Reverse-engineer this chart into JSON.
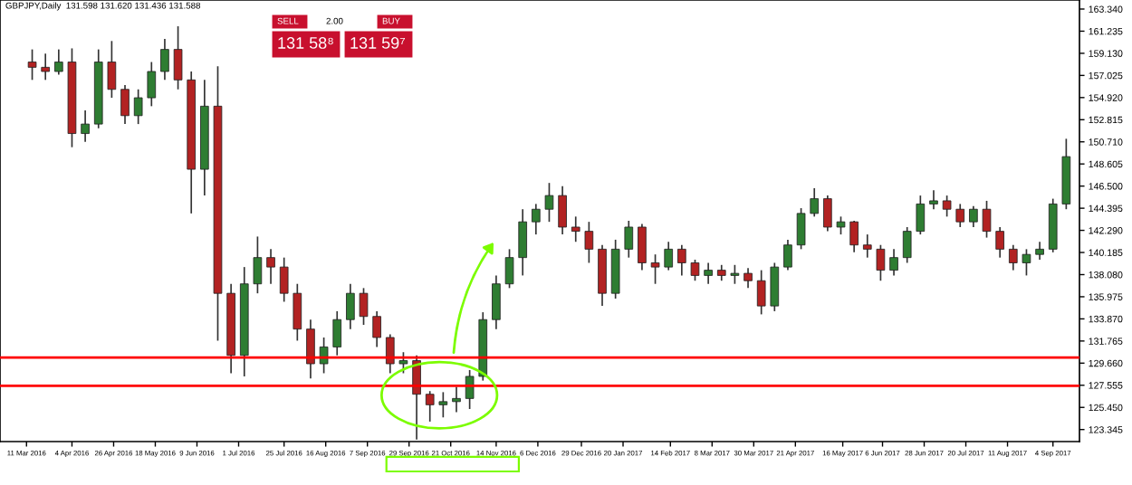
{
  "chart_data": {
    "type": "candlestick",
    "x": [
      "2016-03-14",
      "2016-03-21",
      "2016-03-28",
      "2016-04-04",
      "2016-04-11",
      "2016-04-18",
      "2016-04-25",
      "2016-05-02",
      "2016-05-09",
      "2016-05-16",
      "2016-05-23",
      "2016-05-30",
      "2016-06-06",
      "2016-06-13",
      "2016-06-20",
      "2016-06-27",
      "2016-07-04",
      "2016-07-11",
      "2016-07-18",
      "2016-07-25",
      "2016-08-01",
      "2016-08-08",
      "2016-08-15",
      "2016-08-22",
      "2016-08-29",
      "2016-09-05",
      "2016-09-12",
      "2016-09-19",
      "2016-09-26",
      "2016-10-03",
      "2016-10-10",
      "2016-10-17",
      "2016-10-24",
      "2016-10-31",
      "2016-11-07",
      "2016-11-14",
      "2016-11-21",
      "2016-11-28",
      "2016-12-05",
      "2016-12-12",
      "2016-12-19",
      "2016-12-26",
      "2017-01-02",
      "2017-01-09",
      "2017-01-16",
      "2017-01-23",
      "2017-01-30",
      "2017-02-06",
      "2017-02-13",
      "2017-02-20",
      "2017-02-27",
      "2017-03-06",
      "2017-03-13",
      "2017-03-20",
      "2017-03-27",
      "2017-04-03",
      "2017-04-10",
      "2017-04-17",
      "2017-04-24",
      "2017-05-01",
      "2017-05-08",
      "2017-05-15",
      "2017-05-22",
      "2017-05-29",
      "2017-06-05",
      "2017-06-12",
      "2017-06-19",
      "2017-06-26",
      "2017-07-03",
      "2017-07-10",
      "2017-07-17",
      "2017-07-24",
      "2017-07-31",
      "2017-08-07",
      "2017-08-14",
      "2017-08-21",
      "2017-08-28",
      "2017-09-04",
      "2017-09-11"
    ],
    "ohlc": [
      [
        158.3,
        159.5,
        156.6,
        157.8
      ],
      [
        157.8,
        159.1,
        156.6,
        157.4
      ],
      [
        157.4,
        159.5,
        157.1,
        158.3
      ],
      [
        158.3,
        159.6,
        150.2,
        151.5
      ],
      [
        151.5,
        153.7,
        150.7,
        152.4
      ],
      [
        152.4,
        159.5,
        152.0,
        158.3
      ],
      [
        158.3,
        160.3,
        154.9,
        155.7
      ],
      [
        155.7,
        156.1,
        152.4,
        153.2
      ],
      [
        153.2,
        155.7,
        152.4,
        154.9
      ],
      [
        154.9,
        158.3,
        154.1,
        157.4
      ],
      [
        157.4,
        160.5,
        156.6,
        159.5
      ],
      [
        159.5,
        161.7,
        155.7,
        156.6
      ],
      [
        156.6,
        157.4,
        143.9,
        148.1
      ],
      [
        148.1,
        156.6,
        145.6,
        154.1
      ],
      [
        154.1,
        157.9,
        131.8,
        136.3
      ],
      [
        136.3,
        137.2,
        128.7,
        130.4
      ],
      [
        130.4,
        138.8,
        128.4,
        137.2
      ],
      [
        137.2,
        141.7,
        136.3,
        139.7
      ],
      [
        139.7,
        140.5,
        137.2,
        138.8
      ],
      [
        138.8,
        139.7,
        135.5,
        136.3
      ],
      [
        136.3,
        137.2,
        131.8,
        132.9
      ],
      [
        132.9,
        133.8,
        128.2,
        129.6
      ],
      [
        129.6,
        132.1,
        128.7,
        131.2
      ],
      [
        131.2,
        134.6,
        130.4,
        133.8
      ],
      [
        133.8,
        137.2,
        132.9,
        136.3
      ],
      [
        136.3,
        136.8,
        133.3,
        134.1
      ],
      [
        134.1,
        134.6,
        131.2,
        132.1
      ],
      [
        132.1,
        132.4,
        128.7,
        129.6
      ],
      [
        129.6,
        130.7,
        128.7,
        129.9
      ],
      [
        129.9,
        130.4,
        122.4,
        126.7
      ],
      [
        126.7,
        127.0,
        124.1,
        125.7
      ],
      [
        125.7,
        126.9,
        124.5,
        126.0
      ],
      [
        126.0,
        127.4,
        125.0,
        126.3
      ],
      [
        126.3,
        129.0,
        125.3,
        128.4
      ],
      [
        128.4,
        134.5,
        128.0,
        133.8
      ],
      [
        133.8,
        138.0,
        132.9,
        137.2
      ],
      [
        137.2,
        140.5,
        136.8,
        139.7
      ],
      [
        139.7,
        144.3,
        138.0,
        143.1
      ],
      [
        143.1,
        144.8,
        141.9,
        144.3
      ],
      [
        144.3,
        146.8,
        143.1,
        145.6
      ],
      [
        145.6,
        146.5,
        141.9,
        142.6
      ],
      [
        142.6,
        143.6,
        141.2,
        142.2
      ],
      [
        142.2,
        143.1,
        139.2,
        140.5
      ],
      [
        140.5,
        140.9,
        135.1,
        136.3
      ],
      [
        136.3,
        141.4,
        135.8,
        140.5
      ],
      [
        140.5,
        143.2,
        139.7,
        142.6
      ],
      [
        142.6,
        142.9,
        138.5,
        139.2
      ],
      [
        139.2,
        140.0,
        137.2,
        138.8
      ],
      [
        138.8,
        141.2,
        138.5,
        140.5
      ],
      [
        140.5,
        140.9,
        138.0,
        139.2
      ],
      [
        139.2,
        139.5,
        137.5,
        138.0
      ],
      [
        138.0,
        139.2,
        137.2,
        138.5
      ],
      [
        138.5,
        139.0,
        137.5,
        138.0
      ],
      [
        138.0,
        139.0,
        137.2,
        138.2
      ],
      [
        138.2,
        138.7,
        136.8,
        137.5
      ],
      [
        137.5,
        138.5,
        134.3,
        135.1
      ],
      [
        135.1,
        139.2,
        134.6,
        138.8
      ],
      [
        138.8,
        141.4,
        138.5,
        140.9
      ],
      [
        140.9,
        144.4,
        140.5,
        143.9
      ],
      [
        143.9,
        146.3,
        143.6,
        145.3
      ],
      [
        145.3,
        145.6,
        142.2,
        142.6
      ],
      [
        142.6,
        143.6,
        141.9,
        143.1
      ],
      [
        143.1,
        143.2,
        140.2,
        140.9
      ],
      [
        140.9,
        141.9,
        139.7,
        140.5
      ],
      [
        140.5,
        140.9,
        137.5,
        138.5
      ],
      [
        138.5,
        140.5,
        138.0,
        139.7
      ],
      [
        139.7,
        142.6,
        139.2,
        142.2
      ],
      [
        142.2,
        145.6,
        141.9,
        144.8
      ],
      [
        144.8,
        146.1,
        144.3,
        145.1
      ],
      [
        145.1,
        145.6,
        143.6,
        144.3
      ],
      [
        144.3,
        144.8,
        142.6,
        143.1
      ],
      [
        143.1,
        144.6,
        142.6,
        144.3
      ],
      [
        144.3,
        145.1,
        141.6,
        142.2
      ],
      [
        142.2,
        142.6,
        139.7,
        140.5
      ],
      [
        140.5,
        140.9,
        138.5,
        139.2
      ],
      [
        139.2,
        140.5,
        138.0,
        140.0
      ],
      [
        140.0,
        141.2,
        139.5,
        140.5
      ],
      [
        140.5,
        145.3,
        140.2,
        144.8
      ],
      [
        144.8,
        151.0,
        144.3,
        149.3
      ]
    ],
    "colors": [
      "#b22222",
      "#b22222",
      "#2e7d32",
      "#b22222",
      "#2e7d32",
      "#2e7d32",
      "#b22222",
      "#b22222",
      "#2e7d32",
      "#2e7d32",
      "#2e7d32",
      "#b22222",
      "#b22222",
      "#2e7d32",
      "#b22222",
      "#b22222",
      "#2e7d32",
      "#2e7d32",
      "#b22222",
      "#b22222",
      "#b22222",
      "#b22222",
      "#2e7d32",
      "#2e7d32",
      "#2e7d32",
      "#b22222",
      "#b22222",
      "#b22222",
      "#2e7d32",
      "#b22222",
      "#b22222",
      "#2e7d32",
      "#2e7d32",
      "#2e7d32",
      "#2e7d32",
      "#2e7d32",
      "#2e7d32",
      "#2e7d32",
      "#2e7d32",
      "#2e7d32",
      "#b22222",
      "#b22222",
      "#b22222",
      "#b22222",
      "#2e7d32",
      "#2e7d32",
      "#b22222",
      "#b22222",
      "#2e7d32",
      "#b22222",
      "#b22222",
      "#2e7d32",
      "#b22222",
      "#2e7d32",
      "#b22222",
      "#b22222",
      "#2e7d32",
      "#2e7d32",
      "#2e7d32",
      "#2e7d32",
      "#b22222",
      "#2e7d32",
      "#b22222",
      "#b22222",
      "#b22222",
      "#2e7d32",
      "#2e7d32",
      "#2e7d32",
      "#2e7d32",
      "#b22222",
      "#b22222",
      "#2e7d32",
      "#b22222",
      "#b22222",
      "#b22222",
      "#2e7d32",
      "#2e7d32",
      "#2e7d32",
      "#2e7d32"
    ],
    "xlim": [
      "2016-02-26",
      "2017-09-18"
    ],
    "xticks": [
      {
        "value": "2016-03-11",
        "label": "11 Mar 2016"
      },
      {
        "value": "2016-04-04",
        "label": "4 Apr 2016"
      },
      {
        "value": "2016-04-26",
        "label": "26 Apr 2016"
      },
      {
        "value": "2016-05-18",
        "label": "18 May 2016"
      },
      {
        "value": "2016-06-09",
        "label": "9 Jun 2016"
      },
      {
        "value": "2016-07-01",
        "label": "1 Jul 2016"
      },
      {
        "value": "2016-07-25",
        "label": "25 Jul 2016"
      },
      {
        "value": "2016-08-16",
        "label": "16 Aug 2016"
      },
      {
        "value": "2016-09-07",
        "label": "7 Sep 2016"
      },
      {
        "value": "2016-09-29",
        "label": "29 Sep 2016"
      },
      {
        "value": "2016-10-21",
        "label": "21 Oct 2016"
      },
      {
        "value": "2016-11-14",
        "label": "14 Nov 2016"
      },
      {
        "value": "2016-12-06",
        "label": "6 Dec 2016"
      },
      {
        "value": "2016-12-29",
        "label": "29 Dec 2016"
      },
      {
        "value": "2017-01-20",
        "label": "20 Jan 2017"
      },
      {
        "value": "2017-02-14",
        "label": "14 Feb 2017"
      },
      {
        "value": "2017-03-08",
        "label": "8 Mar 2017"
      },
      {
        "value": "2017-03-30",
        "label": "30 Mar 2017"
      },
      {
        "value": "2017-04-21",
        "label": "21 Apr 2017"
      },
      {
        "value": "2017-05-16",
        "label": "16 May 2017"
      },
      {
        "value": "2017-06-06",
        "label": "6 Jun 2017"
      },
      {
        "value": "2017-06-28",
        "label": "28 Jun 2017"
      },
      {
        "value": "2017-07-20",
        "label": "20 Jul 2017"
      },
      {
        "value": "2017-08-11",
        "label": "11 Aug 2017"
      },
      {
        "value": "2017-09-04",
        "label": "4 Sep 2017"
      }
    ],
    "ylim": [
      122.2,
      164.2
    ],
    "yticks": [
      {
        "value": 163.34,
        "label": "163.340"
      },
      {
        "value": 161.235,
        "label": "161.235"
      },
      {
        "value": 159.13,
        "label": "159.130"
      },
      {
        "value": 157.025,
        "label": "157.025"
      },
      {
        "value": 154.92,
        "label": "154.920"
      },
      {
        "value": 152.815,
        "label": "152.815"
      },
      {
        "value": 150.71,
        "label": "150.710"
      },
      {
        "value": 148.605,
        "label": "148.605"
      },
      {
        "value": 146.5,
        "label": "146.500"
      },
      {
        "value": 144.395,
        "label": "144.395"
      },
      {
        "value": 142.29,
        "label": "142.290"
      },
      {
        "value": 140.185,
        "label": "140.185"
      },
      {
        "value": 138.08,
        "label": "138.080"
      },
      {
        "value": 135.975,
        "label": "135.975"
      },
      {
        "value": 133.87,
        "label": "133.870"
      },
      {
        "value": 131.765,
        "label": "131.765"
      },
      {
        "value": 129.66,
        "label": "129.660"
      },
      {
        "value": 127.555,
        "label": "127.555"
      },
      {
        "value": 125.45,
        "label": "125.450"
      },
      {
        "value": 123.345,
        "label": "123.345"
      }
    ],
    "ref_lines": [
      {
        "axis": "y",
        "value": 130.2,
        "color": "#ff0000"
      },
      {
        "axis": "y",
        "value": 127.5,
        "color": "#ff0000"
      }
    ],
    "annotations": [
      "GBPJPY,Daily  131.598 131.620 131.436 131.588",
      "SELL",
      "2.00",
      "BUY",
      "131 58⁸",
      "131 59⁷"
    ]
  }
}
